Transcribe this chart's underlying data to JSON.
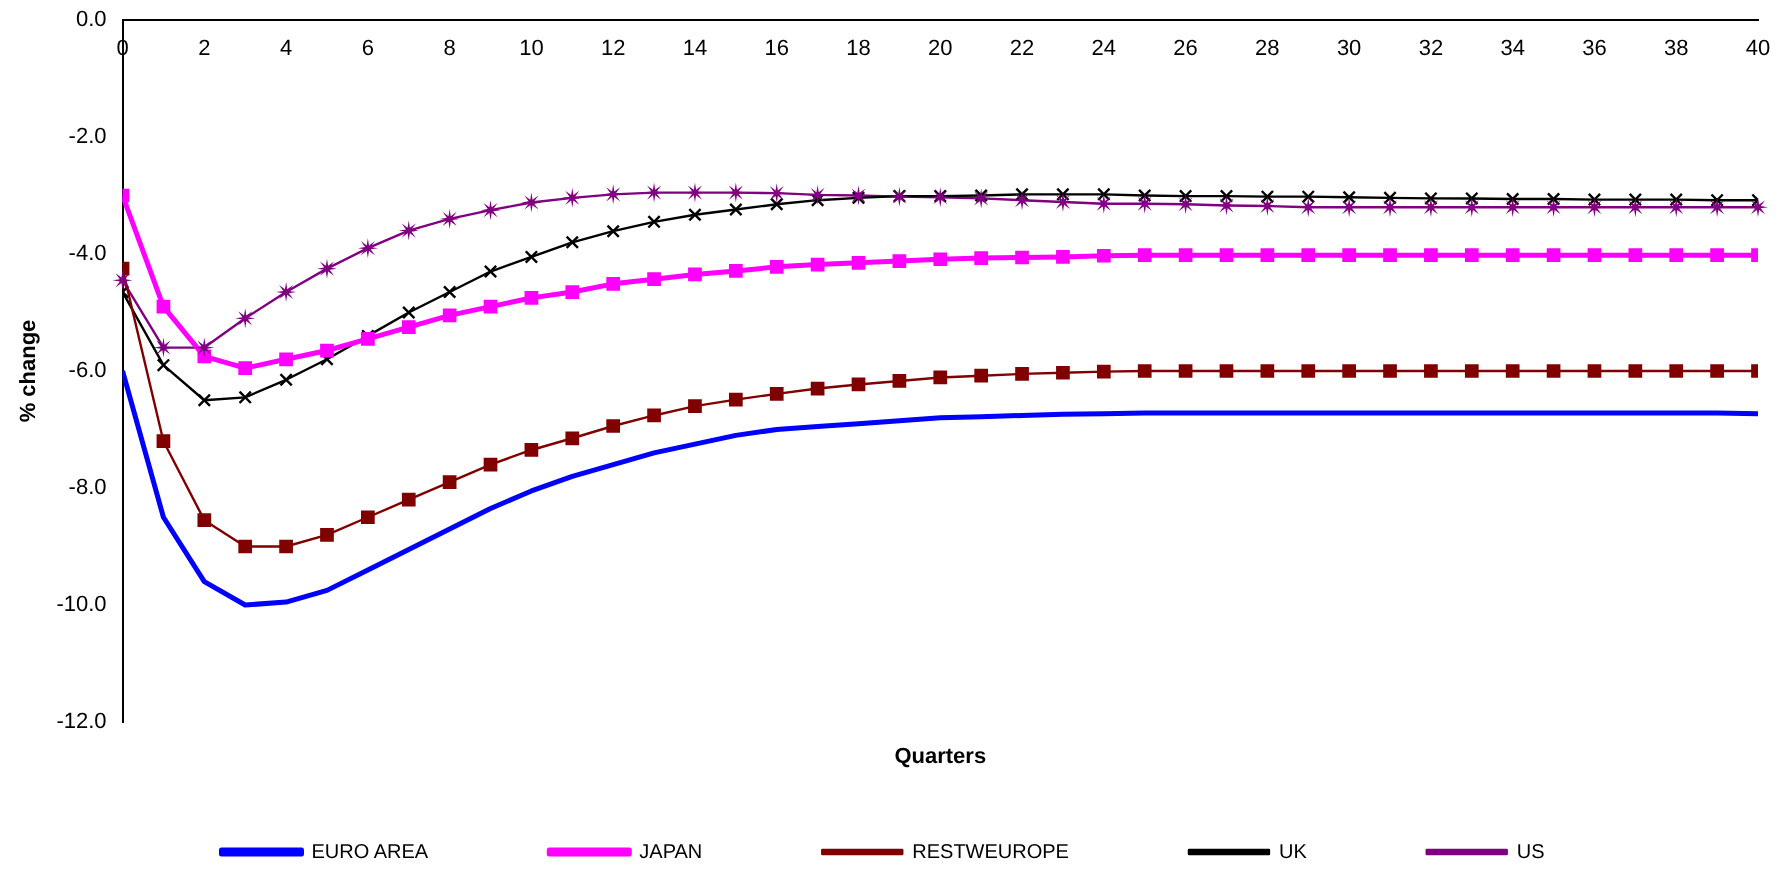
{
  "chart_data": {
    "type": "line",
    "xlabel": "Quarters",
    "ylabel": "% change",
    "x": [
      0,
      1,
      2,
      3,
      4,
      5,
      6,
      7,
      8,
      9,
      10,
      11,
      12,
      13,
      14,
      15,
      16,
      17,
      18,
      19,
      20,
      21,
      22,
      23,
      24,
      25,
      26,
      27,
      28,
      29,
      30,
      31,
      32,
      33,
      34,
      35,
      36,
      37,
      38,
      39,
      40
    ],
    "series": [
      {
        "name": "EURO AREA",
        "color": "#0000ff",
        "marker": "none",
        "values": [
          -6.0,
          -8.5,
          -9.6,
          -10.0,
          -9.95,
          -9.75,
          -9.4,
          -9.05,
          -8.7,
          -8.35,
          -8.05,
          -7.8,
          -7.6,
          -7.4,
          -7.25,
          -7.1,
          -7.0,
          -6.95,
          -6.9,
          -6.85,
          -6.8,
          -6.78,
          -6.76,
          -6.74,
          -6.73,
          -6.72,
          -6.72,
          -6.72,
          -6.72,
          -6.72,
          -6.72,
          -6.72,
          -6.72,
          -6.72,
          -6.72,
          -6.72,
          -6.72,
          -6.72,
          -6.72,
          -6.72,
          -6.73
        ]
      },
      {
        "name": "JAPAN",
        "color": "#ff00ff",
        "marker": "square",
        "values": [
          -3.0,
          -4.9,
          -5.75,
          -5.95,
          -5.8,
          -5.65,
          -5.45,
          -5.25,
          -5.05,
          -4.9,
          -4.75,
          -4.65,
          -4.51,
          -4.43,
          -4.35,
          -4.29,
          -4.22,
          -4.18,
          -4.15,
          -4.12,
          -4.09,
          -4.07,
          -4.06,
          -4.05,
          -4.03,
          -4.02,
          -4.02,
          -4.02,
          -4.02,
          -4.02,
          -4.02,
          -4.02,
          -4.02,
          -4.02,
          -4.02,
          -4.02,
          -4.02,
          -4.02,
          -4.02,
          -4.02,
          -4.02
        ]
      },
      {
        "name": "RESTWEUROPE",
        "color": "#800000",
        "marker": "square",
        "values": [
          -4.25,
          -7.2,
          -8.55,
          -9.0,
          -9.0,
          -8.8,
          -8.5,
          -8.2,
          -7.9,
          -7.6,
          -7.35,
          -7.15,
          -6.94,
          -6.76,
          -6.6,
          -6.49,
          -6.39,
          -6.3,
          -6.23,
          -6.17,
          -6.11,
          -6.08,
          -6.05,
          -6.03,
          -6.01,
          -6.0,
          -6.0,
          -6.0,
          -6.0,
          -6.0,
          -6.0,
          -6.0,
          -6.0,
          -6.0,
          -6.0,
          -6.0,
          -6.0,
          -6.0,
          -6.0,
          -6.0,
          -6.0
        ]
      },
      {
        "name": "UK",
        "color": "#000000",
        "marker": "cross",
        "values": [
          -4.65,
          -5.9,
          -6.5,
          -6.45,
          -6.15,
          -5.8,
          -5.4,
          -5.0,
          -4.65,
          -4.3,
          -4.05,
          -3.8,
          -3.61,
          -3.45,
          -3.33,
          -3.24,
          -3.15,
          -3.08,
          -3.04,
          -3.01,
          -3.01,
          -3.0,
          -2.98,
          -2.98,
          -2.98,
          -3.0,
          -3.01,
          -3.01,
          -3.02,
          -3.02,
          -3.03,
          -3.04,
          -3.05,
          -3.05,
          -3.06,
          -3.06,
          -3.07,
          -3.07,
          -3.07,
          -3.08,
          -3.08
        ]
      },
      {
        "name": "US",
        "color": "#800080",
        "marker": "star",
        "values": [
          -4.45,
          -5.6,
          -5.6,
          -5.1,
          -4.65,
          -4.25,
          -3.9,
          -3.6,
          -3.4,
          -3.25,
          -3.12,
          -3.04,
          -2.98,
          -2.95,
          -2.95,
          -2.95,
          -2.96,
          -2.99,
          -3.0,
          -3.02,
          -3.03,
          -3.05,
          -3.08,
          -3.11,
          -3.14,
          -3.14,
          -3.15,
          -3.17,
          -3.18,
          -3.2,
          -3.2,
          -3.2,
          -3.2,
          -3.2,
          -3.2,
          -3.2,
          -3.2,
          -3.2,
          -3.2,
          -3.2,
          -3.2
        ]
      }
    ],
    "xlim": [
      0,
      40
    ],
    "xticks": [
      0,
      2,
      4,
      6,
      8,
      10,
      12,
      14,
      16,
      18,
      20,
      22,
      24,
      26,
      28,
      30,
      32,
      34,
      36,
      38,
      40
    ],
    "ylim": [
      -12,
      0
    ],
    "yticks": [
      {
        "value": 0,
        "label": "0.0"
      },
      {
        "value": -2,
        "label": "-2.0"
      },
      {
        "value": -4,
        "label": "-4.0"
      },
      {
        "value": -6,
        "label": "-6.0"
      },
      {
        "value": -8,
        "label": "-8.0"
      },
      {
        "value": -10,
        "label": "-10.0"
      },
      {
        "value": -12,
        "label": "-12.0"
      }
    ],
    "grid": false,
    "legend": "bottom"
  }
}
